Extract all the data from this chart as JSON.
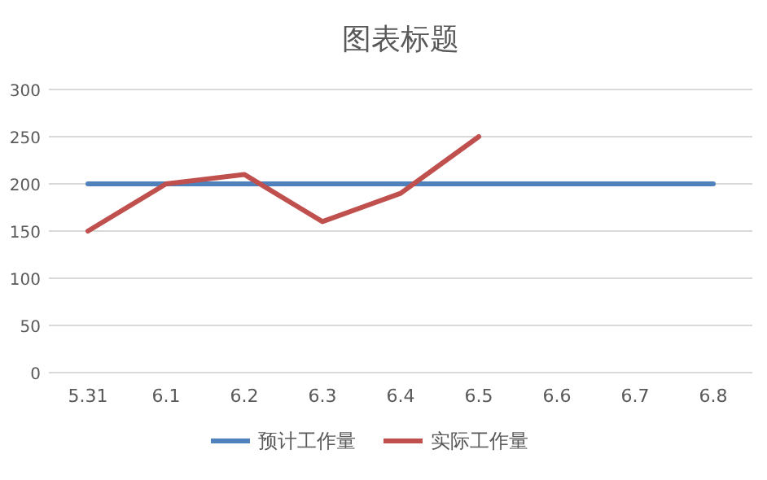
{
  "chart_data": {
    "type": "line",
    "title": "图表标题",
    "categories": [
      "5.31",
      "6.1",
      "6.2",
      "6.3",
      "6.4",
      "6.5",
      "6.6",
      "6.7",
      "6.8"
    ],
    "series": [
      {
        "name": "预计工作量",
        "color": "#4f81bd",
        "values": [
          200,
          200,
          200,
          200,
          200,
          200,
          200,
          200,
          200
        ]
      },
      {
        "name": "实际工作量",
        "color": "#c0504d",
        "values": [
          150,
          200,
          210,
          160,
          190,
          250,
          null,
          null,
          null
        ]
      }
    ],
    "ylim": [
      0,
      300
    ],
    "yticks": [
      0,
      50,
      100,
      150,
      200,
      250,
      300
    ],
    "grid": "y",
    "legend": "bottom"
  }
}
